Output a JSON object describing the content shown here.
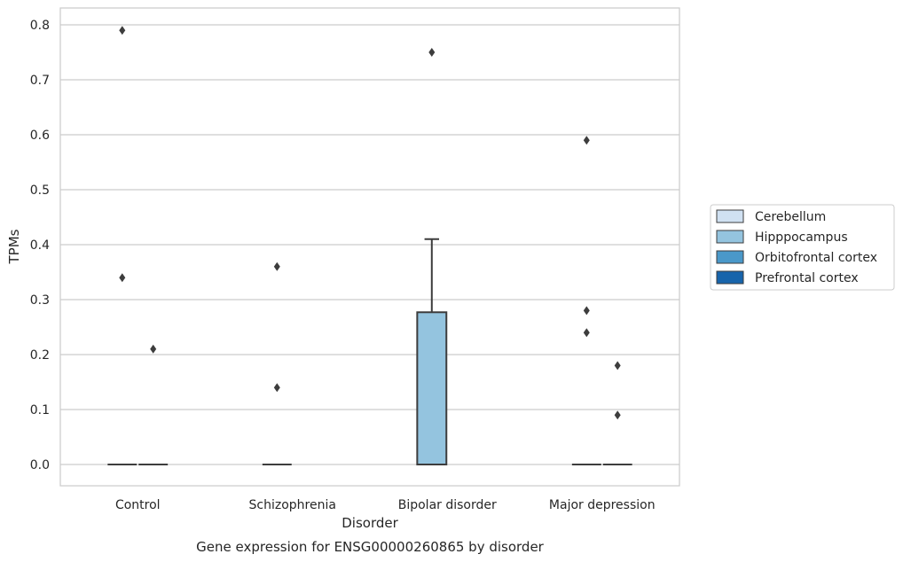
{
  "chart_data": {
    "type": "box",
    "title": "Gene expression for ENSG00000260865 by disorder",
    "xlabel": "Disorder",
    "ylabel": "TPMs",
    "ylim": [
      -0.04,
      0.83
    ],
    "yticks": [
      0.0,
      0.1,
      0.2,
      0.3,
      0.4,
      0.5,
      0.6,
      0.7,
      0.8
    ],
    "ytick_labels": [
      "0.0",
      "0.1",
      "0.2",
      "0.3",
      "0.4",
      "0.5",
      "0.6",
      "0.7",
      "0.8"
    ],
    "grid": "horizontal",
    "legend_position": "right",
    "categories": [
      "Control",
      "Schizophrenia",
      "Bipolar disorder",
      "Major depression"
    ],
    "series": [
      {
        "name": "Cerebellum",
        "color": "#d0e1f2"
      },
      {
        "name": "Hipppocampus",
        "color": "#94c4df"
      },
      {
        "name": "Orbitofrontal cortex",
        "color": "#4a98c9"
      },
      {
        "name": "Prefrontal cortex",
        "color": "#1764ab"
      }
    ],
    "boxes": [
      {
        "category": "Control",
        "series": "Hipppocampus",
        "q1": 0.0,
        "median": 0.0,
        "q3": 0.0,
        "whisker_low": 0.0,
        "whisker_high": 0.0,
        "outliers": [
          0.79,
          0.34
        ]
      },
      {
        "category": "Control",
        "series": "Orbitofrontal cortex",
        "q1": 0.0,
        "median": 0.0,
        "q3": 0.0,
        "whisker_low": 0.0,
        "whisker_high": 0.0,
        "outliers": [
          0.21
        ]
      },
      {
        "category": "Schizophrenia",
        "series": "Hipppocampus",
        "q1": 0.0,
        "median": 0.0,
        "q3": 0.0,
        "whisker_low": 0.0,
        "whisker_high": 0.0,
        "outliers": [
          0.36,
          0.14
        ]
      },
      {
        "category": "Bipolar disorder",
        "series": "Hipppocampus",
        "q1": 0.0,
        "median": 0.0,
        "q3": 0.277,
        "whisker_low": 0.0,
        "whisker_high": 0.41,
        "outliers": [
          0.75
        ]
      },
      {
        "category": "Major depression",
        "series": "Hipppocampus",
        "q1": 0.0,
        "median": 0.0,
        "q3": 0.0,
        "whisker_low": 0.0,
        "whisker_high": 0.0,
        "outliers": [
          0.59,
          0.28,
          0.24
        ]
      },
      {
        "category": "Major depression",
        "series": "Orbitofrontal cortex",
        "q1": 0.0,
        "median": 0.0,
        "q3": 0.0,
        "whisker_low": 0.0,
        "whisker_high": 0.0,
        "outliers": [
          0.18,
          0.09
        ]
      }
    ]
  }
}
